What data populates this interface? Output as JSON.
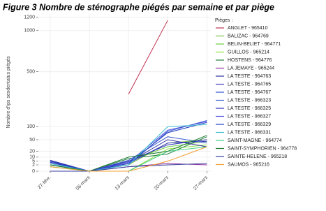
{
  "chart_data": {
    "type": "line",
    "title": "Figure 3 Nombre de sténographe piégés par semaine et par piège",
    "y_label": "Nombre d'ips sexdentatus piégés",
    "legend_title": "Pièges :",
    "legend_position": "right",
    "y_scale": "sqrt",
    "grid": true,
    "categories": [
      "27-févr.",
      "06-mars",
      "13-mars",
      "20-mars",
      "27-mars"
    ],
    "ylim": [
      0,
      1250
    ],
    "yticks": [
      0,
      2,
      5,
      10,
      20,
      50,
      100,
      500,
      1000,
      1200
    ],
    "series": [
      {
        "name": "ANGLET  -  965410",
        "color": "#c0304f",
        "values": [
          null,
          null,
          300,
          1150,
          null
        ]
      },
      {
        "name": "BALIZAC  -  964769",
        "color": "#7cc040",
        "values": [
          3,
          0,
          2,
          40,
          50
        ]
      },
      {
        "name": "BELIN-BELIET  -  964771",
        "color": "#6ad040",
        "values": [
          2,
          0,
          5,
          30,
          45
        ]
      },
      {
        "name": "GUILLOS  -  965214",
        "color": "#90e040",
        "values": [
          1,
          0,
          0,
          25,
          35
        ]
      },
      {
        "name": "HOSTENS  -  964776",
        "color": "#208040",
        "values": [
          2,
          0,
          8,
          15,
          60
        ]
      },
      {
        "name": "LA JEMAYE  -  965244",
        "color": "#9030a0",
        "values": [
          0,
          0,
          1,
          3,
          2
        ]
      },
      {
        "name": "LA TESTE  -  964763",
        "color": "#3030a0",
        "values": [
          6,
          0,
          4,
          50,
          30
        ]
      },
      {
        "name": "LA TESTE  -  964765",
        "color": "#4040c0",
        "values": [
          4,
          0,
          3,
          40,
          45
        ]
      },
      {
        "name": "LA TESTE  -  964767",
        "color": "#3050d0",
        "values": [
          5,
          0,
          2,
          80,
          130
        ]
      },
      {
        "name": "LA TESTE  -  966323",
        "color": "#4060d0",
        "values": [
          3,
          0,
          6,
          60,
          40
        ]
      },
      {
        "name": "LA TESTE  -  966325",
        "color": "#3030c0",
        "values": [
          4,
          0,
          5,
          35,
          50
        ]
      },
      {
        "name": "LA TESTE  -  966327",
        "color": "#5050e0",
        "values": [
          2,
          0,
          4,
          85,
          125
        ]
      },
      {
        "name": "LA TESTE  -  966329",
        "color": "#2040c0",
        "values": [
          5,
          0,
          3,
          75,
          120
        ]
      },
      {
        "name": "LA TESTE  -  966331",
        "color": "#40c0d0",
        "values": [
          3,
          0,
          2,
          100,
          110
        ]
      },
      {
        "name": "SAINT-MAGNE  -  964774",
        "color": "#40d080",
        "values": [
          1,
          0,
          0,
          20,
          30
        ]
      },
      {
        "name": "SAINT-SYMPHORIEN  -  964778",
        "color": "#1a7a30",
        "values": [
          2,
          0,
          10,
          20,
          65
        ]
      },
      {
        "name": "SAINTE-HELENE  -  965218",
        "color": "#3a40a0",
        "values": [
          0,
          0,
          1,
          2,
          3
        ]
      },
      {
        "name": "SAUMOS  -  965216",
        "color": "#f0a030",
        "values": [
          1,
          0,
          0,
          5,
          30
        ]
      }
    ]
  }
}
